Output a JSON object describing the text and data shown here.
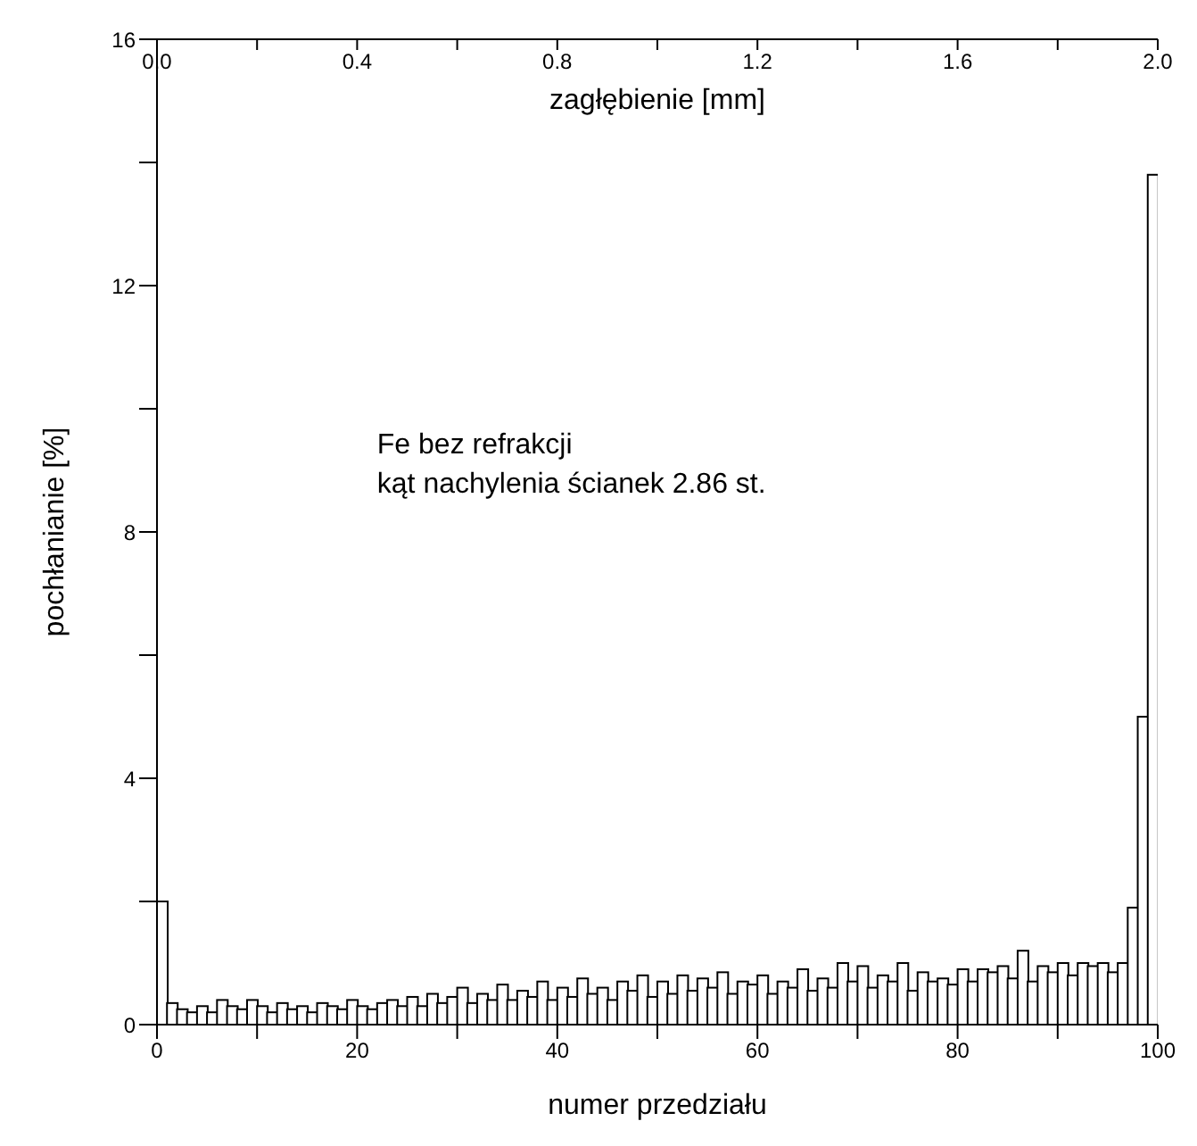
{
  "chart_data": {
    "type": "histogram",
    "xlabel": "numer przedziału",
    "ylabel": "pochłanianie  [%]",
    "x2label": "zagłębienie  [mm]",
    "annotations": [
      "Fe bez refrakcji",
      "kąt nachylenia ścianek 2.86 st."
    ],
    "bins": [
      0,
      1,
      2,
      3,
      4,
      5,
      6,
      7,
      8,
      9,
      10,
      11,
      12,
      13,
      14,
      15,
      16,
      17,
      18,
      19,
      20,
      21,
      22,
      23,
      24,
      25,
      26,
      27,
      28,
      29,
      30,
      31,
      32,
      33,
      34,
      35,
      36,
      37,
      38,
      39,
      40,
      41,
      42,
      43,
      44,
      45,
      46,
      47,
      48,
      49,
      50,
      51,
      52,
      53,
      54,
      55,
      56,
      57,
      58,
      59,
      60,
      61,
      62,
      63,
      64,
      65,
      66,
      67,
      68,
      69,
      70,
      71,
      72,
      73,
      74,
      75,
      76,
      77,
      78,
      79,
      80,
      81,
      82,
      83,
      84,
      85,
      86,
      87,
      88,
      89,
      90,
      91,
      92,
      93,
      94,
      95,
      96,
      97,
      98,
      99,
      100
    ],
    "values": [
      2.0,
      0.35,
      0.25,
      0.2,
      0.3,
      0.2,
      0.4,
      0.3,
      0.25,
      0.4,
      0.3,
      0.2,
      0.35,
      0.25,
      0.3,
      0.2,
      0.35,
      0.3,
      0.25,
      0.4,
      0.3,
      0.25,
      0.35,
      0.4,
      0.3,
      0.45,
      0.3,
      0.5,
      0.35,
      0.45,
      0.6,
      0.35,
      0.5,
      0.4,
      0.65,
      0.4,
      0.55,
      0.45,
      0.7,
      0.4,
      0.6,
      0.45,
      0.75,
      0.5,
      0.6,
      0.4,
      0.7,
      0.55,
      0.8,
      0.45,
      0.7,
      0.5,
      0.8,
      0.55,
      0.75,
      0.6,
      0.85,
      0.5,
      0.7,
      0.65,
      0.8,
      0.5,
      0.7,
      0.6,
      0.9,
      0.55,
      0.75,
      0.6,
      1.0,
      0.7,
      0.95,
      0.6,
      0.8,
      0.7,
      1.0,
      0.55,
      0.85,
      0.7,
      0.75,
      0.65,
      0.9,
      0.7,
      0.9,
      0.85,
      0.95,
      0.75,
      1.2,
      0.7,
      0.95,
      0.85,
      1.0,
      0.8,
      1.0,
      0.95,
      1.0,
      0.85,
      1.0,
      1.9,
      5.0,
      13.8
    ],
    "color": "#ffffff",
    "xlim": [
      0,
      100
    ],
    "xticks": [
      0,
      {
        "value": 10,
        "label": null
      },
      20,
      {
        "value": 30,
        "label": null
      },
      40,
      {
        "value": 50,
        "label": null
      },
      60,
      {
        "value": 70,
        "label": null
      },
      80,
      {
        "value": 90,
        "label": null
      },
      100
    ],
    "x2lim": [
      0,
      2
    ],
    "x2ticks": [
      {
        "value": 0,
        "label": "0.0"
      },
      {
        "value": 0.2,
        "label": null
      },
      0.4,
      {
        "value": 0.6,
        "label": null
      },
      0.8,
      {
        "value": 1.0,
        "label": null
      },
      1.2,
      {
        "value": 1.4,
        "label": null
      },
      1.6,
      {
        "value": 1.8,
        "label": null
      },
      {
        "value": 2,
        "label": "2.0"
      }
    ],
    "ylim": [
      0,
      16
    ],
    "yticks": [
      0,
      {
        "value": 2,
        "label": null
      },
      4,
      {
        "value": 6,
        "label": null
      },
      8,
      {
        "value": 10,
        "label": null
      },
      12,
      {
        "value": 14,
        "label": null
      },
      16
    ],
    "grid": false,
    "legend": false
  }
}
